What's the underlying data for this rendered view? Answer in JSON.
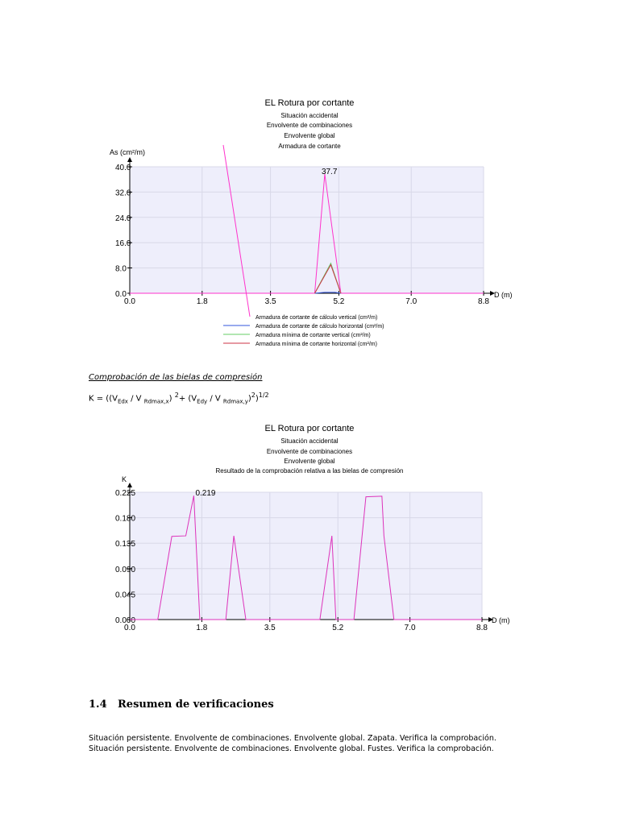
{
  "chart1": {
    "title_lines": [
      "EL Rotura por cortante",
      "Situación accidental",
      "Envolvente de combinaciones",
      "Envolvente global",
      "Armadura de cortante"
    ],
    "ylabel": "As (cm²/m)",
    "xlabel": "D (m)",
    "peak_label": "37.7",
    "legend": [
      {
        "label": "Armadura de cortante de cálculo vertical (cm²/m)",
        "color": "#ff33cc"
      },
      {
        "label": "Armadura de cortante de cálculo horizontal (cm²/m)",
        "color": "#3355dd"
      },
      {
        "label": "Armadura mínima de cortante vertical (cm²/m)",
        "color": "#66cc66"
      },
      {
        "label": "Armadura mínima de cortante horizontal (cm²/m)",
        "color": "#cc3344"
      }
    ]
  },
  "subsection_title": "Comprobación de las bielas de compresión",
  "formula": {
    "k_open": "K = ((V",
    "edx": "Edx",
    "div1": " / V ",
    "rdx": "Rdmax,x",
    "close1": ") ",
    "sq1": "2",
    "plus": "+ (V",
    "edy": "Edy",
    "div2": " / V ",
    "rdy": "Rdmax,y",
    "close2": ")",
    "sq2": "2",
    "close3": ")",
    "half": "1/2"
  },
  "chart2": {
    "title_lines": [
      "EL Rotura por cortante",
      "Situación accidental",
      "Envolvente de combinaciones",
      "Envolvente global",
      "Resultado de la comprobación relativa a las bielas de compresión"
    ],
    "ylabel": "K",
    "xlabel": "D (m)",
    "peak_label": "0.219"
  },
  "section": {
    "number": "1.4",
    "title": "Resumen de verificaciones"
  },
  "summary_lines": [
    "Situación persistente. Envolvente de combinaciones. Envolvente global. Zapata. Verifica la comprobación.",
    "Situación persistente. Envolvente de combinaciones. Envolvente global. Fustes. Verifica la comprobación."
  ],
  "chart_data": [
    {
      "type": "line",
      "title": "EL Rotura por cortante",
      "ylabel": "As (cm²/m)",
      "xlabel": "D (m)",
      "xlim": [
        0,
        8.8
      ],
      "ylim": [
        0,
        40
      ],
      "x_ticks": [
        "0.0",
        "1.8",
        "3.5",
        "5.2",
        "7.0",
        "8.8"
      ],
      "x_tick_values": [
        0,
        1.8,
        3.5,
        5.2,
        7.0,
        8.8
      ],
      "y_ticks": [
        "0.0",
        "8.0",
        "16.0",
        "24.0",
        "32.0",
        "40.0"
      ],
      "y_tick_values": [
        0,
        8,
        16,
        24,
        32,
        40
      ],
      "grid": true,
      "legend_position": "bottom",
      "series": [
        {
          "name": "Armadura de cortante de cálculo vertical (cm²/m)",
          "color": "#ff33cc",
          "x": [
            0,
            4.6,
            4.85,
            5.25,
            8.8
          ],
          "y": [
            0,
            0,
            37.7,
            0,
            0
          ]
        },
        {
          "name": "Armadura de cortante de cálculo horizontal (cm²/m)",
          "color": "#3355dd",
          "x": [
            4.6,
            4.85,
            5.1,
            5.25
          ],
          "y": [
            0,
            0.3,
            0.3,
            0
          ]
        },
        {
          "name": "Armadura mínima de cortante vertical (cm²/m)",
          "color": "#66cc66",
          "x": [
            4.6,
            5.0,
            5.25
          ],
          "y": [
            0,
            9.5,
            0
          ]
        },
        {
          "name": "Armadura mínima de cortante horizontal (cm²/m)",
          "color": "#cc3344",
          "x": [
            4.6,
            5.0,
            5.25
          ],
          "y": [
            0,
            9.0,
            0
          ]
        }
      ]
    },
    {
      "type": "line",
      "title": "EL Rotura por cortante",
      "ylabel": "K",
      "xlabel": "D (m)",
      "xlim": [
        0,
        8.8
      ],
      "ylim": [
        0,
        0.225
      ],
      "x_ticks": [
        "0.0",
        "1.8",
        "3.5",
        "5.2",
        "7.0",
        "8.8"
      ],
      "x_tick_values": [
        0,
        1.8,
        3.5,
        5.2,
        7.0,
        8.8
      ],
      "y_ticks": [
        "0.000",
        "0.045",
        "0.090",
        "0.135",
        "0.180",
        "0.225"
      ],
      "y_tick_values": [
        0,
        0.045,
        0.09,
        0.135,
        0.18,
        0.225
      ],
      "grid": true,
      "series": [
        {
          "color": "#dd33bb",
          "x": [
            0,
            0.7,
            1.05,
            1.4,
            1.6,
            1.75,
            2.05,
            2.4,
            2.6,
            2.9,
            4.4,
            4.75,
            5.05,
            5.15,
            5.45,
            5.6,
            5.9,
            6.3,
            6.35,
            6.6,
            8.8
          ],
          "y": [
            0,
            0,
            0.147,
            0.148,
            0.219,
            0,
            0,
            0,
            0.148,
            0,
            0,
            0,
            0.148,
            0,
            0,
            0,
            0.217,
            0.218,
            0.148,
            0,
            0
          ]
        }
      ]
    }
  ]
}
